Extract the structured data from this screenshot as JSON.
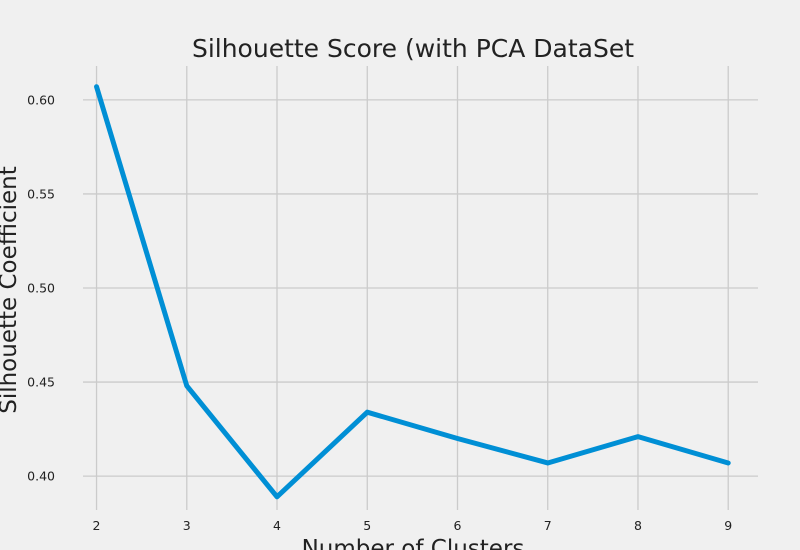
{
  "chart_data": {
    "type": "line",
    "title": "Silhouette Score (with PCA DataSet",
    "xlabel": "Number of Clusters",
    "ylabel": "Silhouette Coefficient",
    "x": [
      2,
      3,
      4,
      5,
      6,
      7,
      8,
      9
    ],
    "series": [
      {
        "values": [
          0.607,
          0.448,
          0.389,
          0.434,
          0.42,
          0.407,
          0.421,
          0.407
        ]
      }
    ],
    "x_ticks": [
      "2",
      "3",
      "4",
      "5",
      "6",
      "7",
      "8",
      "9"
    ],
    "y_ticks": [
      "0.40",
      "0.45",
      "0.50",
      "0.55",
      "0.60"
    ],
    "xlim": [
      1.85,
      9.33
    ],
    "ylim": [
      0.382,
      0.618
    ],
    "grid": true,
    "colors": {
      "background": "#f0f0f0",
      "grid": "#cbcbcb",
      "line": "#008fd5",
      "text": "#222222"
    }
  }
}
